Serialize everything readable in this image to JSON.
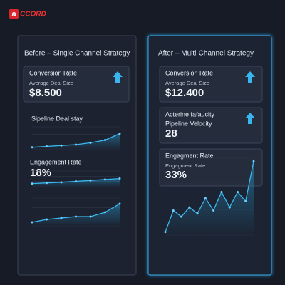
{
  "logo": "CCORD",
  "left": {
    "title": "Before – Single Channel Strategy",
    "card": {
      "label": "Conversion Rate",
      "sublabel": "Average Deal Size",
      "value": "$8.500"
    },
    "section1": "Sipeline Deal stay",
    "section2": {
      "label": "Engagement Rate",
      "value": "18%"
    },
    "charts": [
      {
        "values": [
          10,
          14,
          18,
          22,
          30,
          42,
          70
        ],
        "ylim": [
          0,
          100
        ]
      },
      {
        "values": [
          20,
          24,
          28,
          34,
          40,
          46,
          52
        ],
        "ylim": [
          0,
          100
        ]
      },
      {
        "values": [
          15,
          25,
          30,
          35,
          35,
          50,
          80
        ],
        "ylim": [
          0,
          100
        ]
      }
    ]
  },
  "right": {
    "title": "After – Multi-Channel Strategy",
    "card1": {
      "label": "Conversion Rate",
      "sublabel": "Average Deal Size",
      "value": "$12.400"
    },
    "card2": {
      "label": "Acterine fafaucity",
      "sublabel": "Pipeline Velocity",
      "value": "28"
    },
    "card3": {
      "label": "Engagment Rate",
      "sublabel": "Engagment Rate",
      "value": "33%"
    },
    "chart": {
      "values": [
        5,
        40,
        30,
        45,
        35,
        60,
        40,
        70,
        45,
        70,
        55,
        120
      ],
      "ylim": [
        0,
        125
      ]
    }
  }
}
